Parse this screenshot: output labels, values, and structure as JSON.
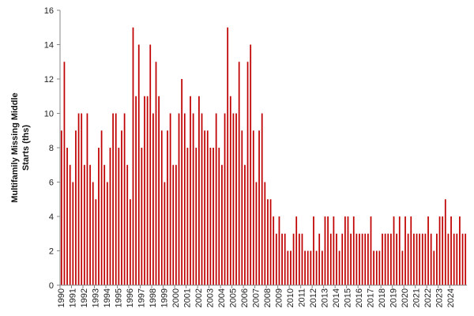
{
  "chart_data": {
    "type": "bar",
    "title": "",
    "xlabel": "",
    "ylabel": [
      "Multifamily Missing Middle",
      "Starts (ths)"
    ],
    "ylim": [
      0,
      16
    ],
    "yticks": [
      0,
      2,
      4,
      6,
      8,
      10,
      12,
      14,
      16
    ],
    "grid": false,
    "legend": "none",
    "bar_color": "#c00000",
    "x_tick_labels": [
      "1990",
      "1991",
      "1992",
      "1993",
      "1994",
      "1995",
      "1996",
      "1997",
      "1998",
      "1999",
      "2000",
      "2001",
      "2002",
      "2003",
      "2004",
      "2005",
      "2006",
      "2007",
      "2008",
      "2009",
      "2010",
      "2011",
      "2012",
      "2013",
      "2014",
      "2015",
      "2016",
      "2017",
      "2018",
      "2019",
      "2020",
      "2021",
      "2022",
      "2023",
      "2024"
    ],
    "series": [
      {
        "values": [
          9,
          13,
          8,
          7,
          6,
          9,
          10,
          10,
          7,
          10,
          7,
          6,
          5,
          8,
          9,
          7,
          6,
          8,
          10,
          10,
          8,
          9,
          10,
          7,
          5,
          15,
          11,
          14,
          8,
          11,
          11,
          14,
          10,
          13,
          11,
          9,
          6,
          9,
          10,
          7,
          7,
          10,
          12,
          10,
          8,
          11,
          10,
          8,
          11,
          10,
          9,
          9,
          8,
          8,
          10,
          8,
          7,
          10,
          15,
          11,
          10,
          10,
          13,
          9,
          7,
          13,
          14,
          9,
          6,
          9,
          10,
          6,
          5,
          5,
          4,
          3,
          4,
          3,
          3,
          2,
          2,
          3,
          4,
          3,
          3,
          2,
          2,
          2,
          4,
          2,
          3,
          2,
          4,
          4,
          3,
          4,
          3,
          2,
          3,
          4,
          4,
          3,
          4,
          3,
          3,
          3,
          3,
          3,
          4,
          2,
          2,
          2,
          3,
          3,
          3,
          3,
          4,
          3,
          4,
          2,
          4,
          3,
          4,
          3,
          3,
          3,
          3,
          3,
          4,
          3,
          2,
          3,
          4,
          4,
          5,
          3,
          4,
          3,
          3,
          4,
          3,
          3
        ]
      }
    ]
  }
}
